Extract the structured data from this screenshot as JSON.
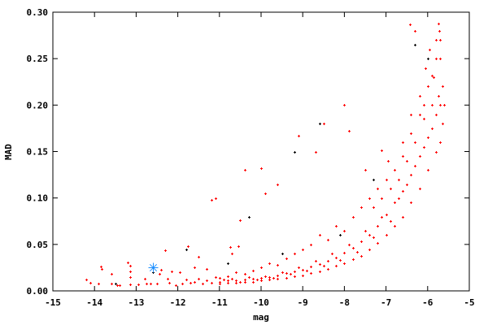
{
  "chart_data": {
    "type": "scatter",
    "title": "",
    "xlabel": "mag",
    "ylabel": "MAD",
    "xlim": [
      -15,
      -5
    ],
    "ylim": [
      0,
      0.3
    ],
    "xticks": [
      -15,
      -14,
      -13,
      -12,
      -11,
      -10,
      -9,
      -8,
      -7,
      -6,
      -5
    ],
    "xtick_labels": [
      "-15",
      "-14",
      "-13",
      "-12",
      "-11",
      "-10",
      "-9",
      "-8",
      "-7",
      "-6",
      "-5"
    ],
    "yticks": [
      0,
      0.05,
      0.1,
      0.15,
      0.2,
      0.25,
      0.3
    ],
    "ytick_labels": [
      "0.00",
      "0.05",
      "0.10",
      "0.15",
      "0.20",
      "0.25",
      "0.30"
    ],
    "grid": false,
    "legend": "none",
    "colors": {
      "red": "#ff0000",
      "black": "#000000",
      "highlight": "#1e90ff",
      "axis": "#000000"
    },
    "series": [
      {
        "color": "#ff0000",
        "marker": "plus",
        "points": [
          [
            -14.2,
            0.012
          ],
          [
            -14.1,
            0.009
          ],
          [
            -13.85,
            0.026
          ],
          [
            -13.83,
            0.024
          ],
          [
            -13.9,
            0.008
          ],
          [
            -13.6,
            0.018
          ],
          [
            -13.6,
            0.008
          ],
          [
            -13.45,
            0.006
          ],
          [
            -13.4,
            0.006
          ],
          [
            -13.2,
            0.031
          ],
          [
            -13.15,
            0.027
          ],
          [
            -13.15,
            0.021
          ],
          [
            -13.15,
            0.015
          ],
          [
            -13.15,
            0.007
          ],
          [
            -12.95,
            0.007
          ],
          [
            -12.8,
            0.013
          ],
          [
            -12.75,
            0.008
          ],
          [
            -12.65,
            0.008
          ],
          [
            -12.5,
            0.008
          ],
          [
            -12.45,
            0.018
          ],
          [
            -12.4,
            0.023
          ],
          [
            -12.3,
            0.044
          ],
          [
            -12.25,
            0.013
          ],
          [
            -12.2,
            0.009
          ],
          [
            -12.15,
            0.021
          ],
          [
            -12.05,
            0.006
          ],
          [
            -11.95,
            0.02
          ],
          [
            -11.75,
            0.048
          ],
          [
            -11.6,
            0.025
          ],
          [
            -11.5,
            0.037
          ],
          [
            -11.3,
            0.024
          ],
          [
            -11.2,
            0.098
          ],
          [
            -11.1,
            0.1
          ],
          [
            -10.75,
            0.047
          ],
          [
            -10.7,
            0.04
          ],
          [
            -10.55,
            0.048
          ],
          [
            -10.5,
            0.076
          ],
          [
            -10.4,
            0.13
          ],
          [
            -10.0,
            0.132
          ],
          [
            -9.9,
            0.105
          ],
          [
            -9.6,
            0.115
          ],
          [
            -9.1,
            0.167
          ],
          [
            -8.7,
            0.15
          ],
          [
            -8.5,
            0.18
          ],
          [
            -8.0,
            0.2
          ],
          [
            -7.9,
            0.172
          ],
          [
            -7.5,
            0.13
          ],
          [
            -7.1,
            0.151
          ],
          [
            -6.43,
            0.287
          ],
          [
            -6.3,
            0.28
          ],
          [
            -5.75,
            0.288
          ],
          [
            -5.72,
            0.28
          ],
          [
            -5.8,
            0.27
          ],
          [
            -5.7,
            0.25
          ],
          [
            -5.9,
            0.232
          ],
          [
            -6.1,
            0.185
          ],
          [
            -11.9,
            0.008
          ],
          [
            -11.8,
            0.012
          ],
          [
            -11.7,
            0.009
          ],
          [
            -11.6,
            0.01
          ],
          [
            -11.5,
            0.013
          ],
          [
            -11.4,
            0.008
          ],
          [
            -11.3,
            0.011
          ],
          [
            -11.2,
            0.009
          ],
          [
            -11.1,
            0.015
          ],
          [
            -11.0,
            0.008
          ],
          [
            -11.0,
            0.01
          ],
          [
            -11.0,
            0.014
          ],
          [
            -10.8,
            0.009
          ],
          [
            -10.8,
            0.011
          ],
          [
            -10.8,
            0.016
          ],
          [
            -10.6,
            0.009
          ],
          [
            -10.6,
            0.011
          ],
          [
            -10.6,
            0.02
          ],
          [
            -10.4,
            0.01
          ],
          [
            -10.4,
            0.012
          ],
          [
            -10.4,
            0.018
          ],
          [
            -10.2,
            0.01
          ],
          [
            -10.2,
            0.013
          ],
          [
            -10.2,
            0.022
          ],
          [
            -10.0,
            0.011
          ],
          [
            -10.0,
            0.014
          ],
          [
            -10.0,
            0.025
          ],
          [
            -9.8,
            0.012
          ],
          [
            -9.8,
            0.015
          ],
          [
            -9.8,
            0.03
          ],
          [
            -9.6,
            0.013
          ],
          [
            -9.6,
            0.017
          ],
          [
            -9.6,
            0.028
          ],
          [
            -9.4,
            0.014
          ],
          [
            -9.4,
            0.019
          ],
          [
            -9.4,
            0.035
          ],
          [
            -9.2,
            0.016
          ],
          [
            -9.2,
            0.021
          ],
          [
            -9.2,
            0.04
          ],
          [
            -9.0,
            0.017
          ],
          [
            -9.0,
            0.023
          ],
          [
            -9.0,
            0.045
          ],
          [
            -8.8,
            0.019
          ],
          [
            -8.8,
            0.026
          ],
          [
            -8.8,
            0.05
          ],
          [
            -8.6,
            0.021
          ],
          [
            -8.6,
            0.029
          ],
          [
            -8.6,
            0.06
          ],
          [
            -8.4,
            0.024
          ],
          [
            -8.4,
            0.032
          ],
          [
            -8.4,
            0.055
          ],
          [
            -8.2,
            0.027
          ],
          [
            -8.2,
            0.036
          ],
          [
            -8.2,
            0.07
          ],
          [
            -8.0,
            0.03
          ],
          [
            -8.0,
            0.041
          ],
          [
            -8.0,
            0.065
          ],
          [
            -7.8,
            0.034
          ],
          [
            -7.8,
            0.046
          ],
          [
            -7.8,
            0.08
          ],
          [
            -7.6,
            0.038
          ],
          [
            -7.6,
            0.053
          ],
          [
            -7.6,
            0.09
          ],
          [
            -7.4,
            0.045
          ],
          [
            -7.4,
            0.06
          ],
          [
            -7.4,
            0.1
          ],
          [
            -7.2,
            0.052
          ],
          [
            -7.2,
            0.07
          ],
          [
            -7.2,
            0.11
          ],
          [
            -7.0,
            0.06
          ],
          [
            -7.0,
            0.082
          ],
          [
            -7.0,
            0.12
          ],
          [
            -6.8,
            0.07
          ],
          [
            -6.8,
            0.095
          ],
          [
            -6.8,
            0.13
          ],
          [
            -6.6,
            0.08
          ],
          [
            -6.6,
            0.108
          ],
          [
            -6.6,
            0.145
          ],
          [
            -6.4,
            0.095
          ],
          [
            -6.4,
            0.125
          ],
          [
            -6.4,
            0.17
          ],
          [
            -6.2,
            0.11
          ],
          [
            -6.2,
            0.145
          ],
          [
            -6.2,
            0.19
          ],
          [
            -6.0,
            0.13
          ],
          [
            -6.0,
            0.165
          ],
          [
            -6.0,
            0.22
          ],
          [
            -5.8,
            0.15
          ],
          [
            -5.8,
            0.19
          ],
          [
            -5.8,
            0.25
          ],
          [
            -5.7,
            0.16
          ],
          [
            -5.7,
            0.2
          ],
          [
            -5.7,
            0.27
          ],
          [
            -10.9,
            0.012
          ],
          [
            -10.7,
            0.013
          ],
          [
            -10.5,
            0.01
          ],
          [
            -10.3,
            0.015
          ],
          [
            -10.1,
            0.012
          ],
          [
            -9.9,
            0.016
          ],
          [
            -9.7,
            0.014
          ],
          [
            -9.5,
            0.02
          ],
          [
            -9.3,
            0.018
          ],
          [
            -9.1,
            0.025
          ],
          [
            -8.9,
            0.022
          ],
          [
            -8.7,
            0.032
          ],
          [
            -8.5,
            0.027
          ],
          [
            -8.3,
            0.04
          ],
          [
            -8.1,
            0.033
          ],
          [
            -7.9,
            0.05
          ],
          [
            -7.7,
            0.042
          ],
          [
            -7.5,
            0.065
          ],
          [
            -7.3,
            0.058
          ],
          [
            -7.1,
            0.08
          ],
          [
            -6.9,
            0.075
          ],
          [
            -6.7,
            0.1
          ],
          [
            -6.5,
            0.115
          ],
          [
            -6.3,
            0.135
          ],
          [
            -6.1,
            0.155
          ],
          [
            -5.9,
            0.175
          ],
          [
            -5.75,
            0.21
          ],
          [
            -6.9,
            0.11
          ],
          [
            -6.7,
            0.12
          ],
          [
            -6.5,
            0.14
          ],
          [
            -6.3,
            0.16
          ],
          [
            -6.1,
            0.2
          ],
          [
            -5.9,
            0.2
          ],
          [
            -5.85,
            0.23
          ],
          [
            -6.05,
            0.24
          ],
          [
            -5.65,
            0.22
          ],
          [
            -7.3,
            0.09
          ],
          [
            -7.1,
            0.1
          ],
          [
            -6.95,
            0.14
          ],
          [
            -6.6,
            0.16
          ],
          [
            -6.4,
            0.19
          ],
          [
            -6.2,
            0.21
          ],
          [
            -5.95,
            0.26
          ],
          [
            -5.6,
            0.2
          ],
          [
            -5.65,
            0.18
          ]
        ]
      },
      {
        "color": "#000000",
        "marker": "plus",
        "points": [
          [
            -13.5,
            0.008
          ],
          [
            -12.6,
            0.02
          ],
          [
            -11.8,
            0.045
          ],
          [
            -10.8,
            0.03
          ],
          [
            -10.3,
            0.08
          ],
          [
            -9.2,
            0.15
          ],
          [
            -8.6,
            0.18
          ],
          [
            -7.3,
            0.12
          ],
          [
            -6.3,
            0.265
          ],
          [
            -6.0,
            0.25
          ],
          [
            -9.5,
            0.04
          ],
          [
            -8.1,
            0.06
          ]
        ]
      },
      {
        "color": "#1e90ff",
        "marker": "star",
        "points": [
          [
            -12.6,
            0.025
          ]
        ]
      }
    ]
  }
}
